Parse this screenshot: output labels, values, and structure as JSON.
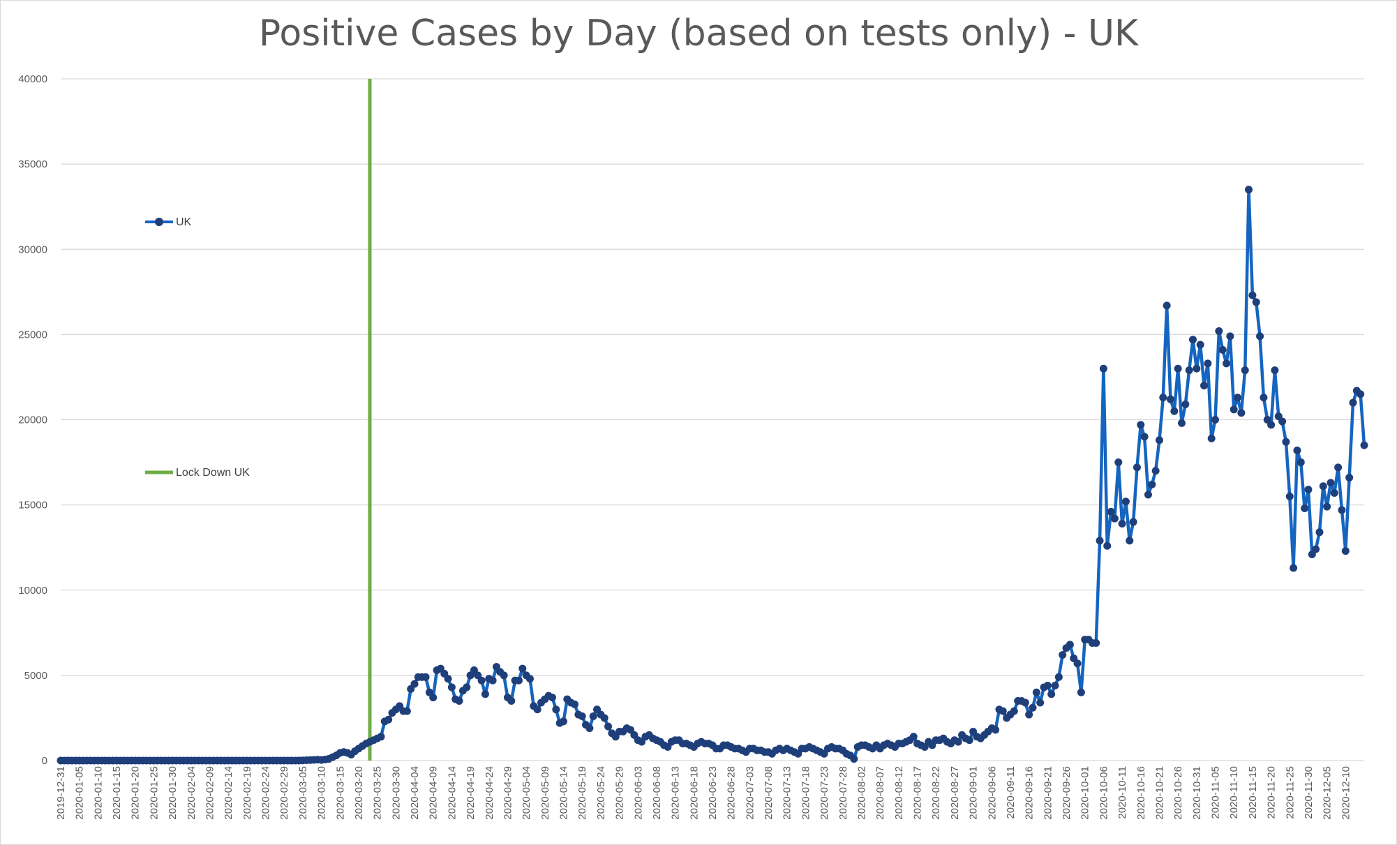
{
  "chart_data": {
    "type": "line",
    "title": "Positive Cases by Day (based on tests only) - UK",
    "xlabel": "",
    "ylabel": "",
    "ylim": [
      0,
      40000
    ],
    "yticks": [
      0,
      5000,
      10000,
      15000,
      20000,
      25000,
      30000,
      35000,
      40000
    ],
    "grid": true,
    "x_start_date": "2019-12-31",
    "x_tick_labels": [
      "2019-12-31",
      "2020-01-05",
      "2020-01-10",
      "2020-01-15",
      "2020-01-20",
      "2020-01-25",
      "2020-01-30",
      "2020-02-04",
      "2020-02-09",
      "2020-02-14",
      "2020-02-19",
      "2020-02-24",
      "2020-02-29",
      "2020-03-05",
      "2020-03-10",
      "2020-03-15",
      "2020-03-20",
      "2020-03-25",
      "2020-03-30",
      "2020-04-04",
      "2020-04-09",
      "2020-04-14",
      "2020-04-19",
      "2020-04-24",
      "2020-04-29",
      "2020-05-04",
      "2020-05-09",
      "2020-05-14",
      "2020-05-19",
      "2020-05-24",
      "2020-05-29",
      "2020-06-03",
      "2020-06-08",
      "2020-06-13",
      "2020-06-18",
      "2020-06-23",
      "2020-06-28",
      "2020-07-03",
      "2020-07-08",
      "2020-07-13",
      "2020-07-18",
      "2020-07-23",
      "2020-07-28",
      "2020-08-02",
      "2020-08-07",
      "2020-08-12",
      "2020-08-17",
      "2020-08-22",
      "2020-08-27",
      "2020-09-01",
      "2020-09-06",
      "2020-09-11",
      "2020-09-16",
      "2020-09-21",
      "2020-09-26",
      "2020-10-01",
      "2020-10-06",
      "2020-10-11",
      "2020-10-16",
      "2020-10-21",
      "2020-10-26",
      "2020-10-31",
      "2020-11-05",
      "2020-11-10",
      "2020-11-15",
      "2020-11-20",
      "2020-11-25",
      "2020-11-30",
      "2020-12-05",
      "2020-12-10"
    ],
    "series": [
      {
        "name": "UK",
        "color": "#1565c0",
        "marker_color": "#1f3f7a",
        "values": [
          0,
          0,
          0,
          0,
          0,
          0,
          0,
          0,
          0,
          0,
          0,
          0,
          0,
          0,
          0,
          0,
          0,
          0,
          0,
          0,
          0,
          0,
          0,
          0,
          0,
          0,
          0,
          0,
          0,
          0,
          0,
          0,
          0,
          0,
          0,
          0,
          0,
          0,
          0,
          0,
          0,
          0,
          0,
          0,
          0,
          0,
          0,
          0,
          0,
          0,
          0,
          0,
          0,
          0,
          0,
          0,
          0,
          0,
          0,
          0,
          0,
          0,
          0,
          0,
          3,
          12,
          20,
          30,
          40,
          50,
          35,
          60,
          100,
          200,
          300,
          450,
          500,
          450,
          350,
          550,
          700,
          850,
          1000,
          1100,
          1200,
          1300,
          1400,
          2300,
          2400,
          2800,
          3000,
          3200,
          2900,
          2900,
          4200,
          4500,
          4900,
          4900,
          4900,
          4000,
          3700,
          5300,
          5400,
          5100,
          4800,
          4300,
          3600,
          3500,
          4100,
          4300,
          5000,
          5300,
          5000,
          4700,
          3900,
          4800,
          4700,
          5500,
          5200,
          5000,
          3700,
          3500,
          4700,
          4700,
          5400,
          5000,
          4800,
          3200,
          3000,
          3400,
          3600,
          3800,
          3700,
          3000,
          2200,
          2300,
          3600,
          3400,
          3300,
          2700,
          2600,
          2100,
          1900,
          2600,
          3000,
          2700,
          2500,
          2000,
          1600,
          1400,
          1700,
          1700,
          1900,
          1800,
          1500,
          1200,
          1100,
          1400,
          1500,
          1300,
          1200,
          1100,
          900,
          800,
          1100,
          1200,
          1200,
          1000,
          1000,
          900,
          800,
          1000,
          1100,
          1000,
          1000,
          900,
          700,
          700,
          900,
          900,
          800,
          700,
          700,
          600,
          500,
          700,
          700,
          600,
          600,
          500,
          500,
          400,
          600,
          700,
          600,
          700,
          600,
          500,
          400,
          700,
          700,
          800,
          700,
          600,
          500,
          400,
          700,
          800,
          700,
          700,
          600,
          400,
          300,
          100,
          800,
          900,
          900,
          800,
          700,
          900,
          700,
          900,
          1000,
          900,
          800,
          1000,
          1000,
          1100,
          1200,
          1400,
          1000,
          900,
          800,
          1100,
          900,
          1200,
          1200,
          1300,
          1100,
          1000,
          1200,
          1100,
          1500,
          1300,
          1200,
          1700,
          1400,
          1300,
          1500,
          1700,
          1900,
          1800,
          3000,
          2900,
          2500,
          2700,
          2900,
          3500,
          3500,
          3400,
          2700,
          3100,
          4000,
          3400,
          4300,
          4400,
          3900,
          4400,
          4900,
          6200,
          6600,
          6800,
          6000,
          5700,
          4000,
          7100,
          7100,
          6900,
          6900,
          12900,
          23000,
          12600,
          14600,
          14200,
          17500,
          13900,
          15200,
          12900,
          14000,
          17200,
          19700,
          19000,
          15600,
          16200,
          17000,
          18800,
          21300,
          26700,
          21200,
          20500,
          23000,
          19800,
          20900,
          22900,
          24700,
          23000,
          24400,
          22000,
          23300,
          18900,
          20000,
          25200,
          24100,
          23300,
          24900,
          20600,
          21300,
          20400,
          22900,
          33500,
          27300,
          26900,
          24900,
          21300,
          20000,
          19700,
          22900,
          20200,
          19900,
          18700,
          15500,
          11300,
          18200,
          17500,
          14800,
          15900,
          12100,
          12400,
          13400,
          16100,
          14900,
          16300,
          15700,
          17200,
          14700,
          12300,
          16600,
          21000,
          21700,
          21500,
          18500
        ]
      },
      {
        "name": "Lock Down UK",
        "color": "#70ad47",
        "vertical_at_date": "2020-03-23"
      }
    ]
  }
}
